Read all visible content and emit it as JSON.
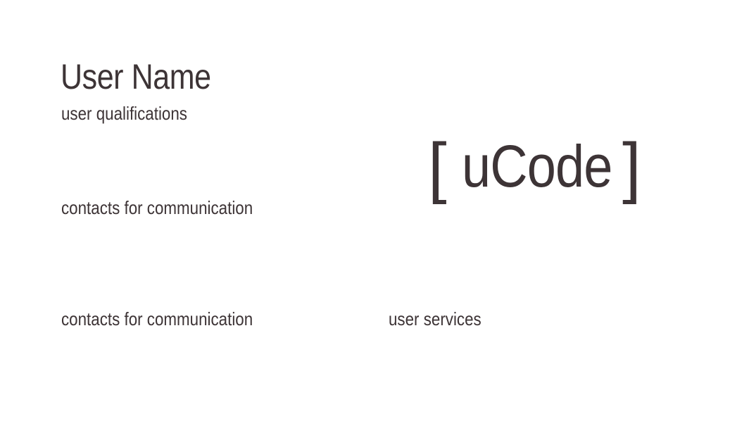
{
  "card": {
    "name": "User Name",
    "qualifications": "user qualifications",
    "contacts_primary": "contacts for communication",
    "contacts_secondary": "contacts for communication",
    "services": "user services",
    "logo": {
      "bracket_left": "[",
      "word": "uCode",
      "bracket_right": "]"
    }
  },
  "colors": {
    "text": "#3d3436",
    "background": "#ffffff"
  }
}
